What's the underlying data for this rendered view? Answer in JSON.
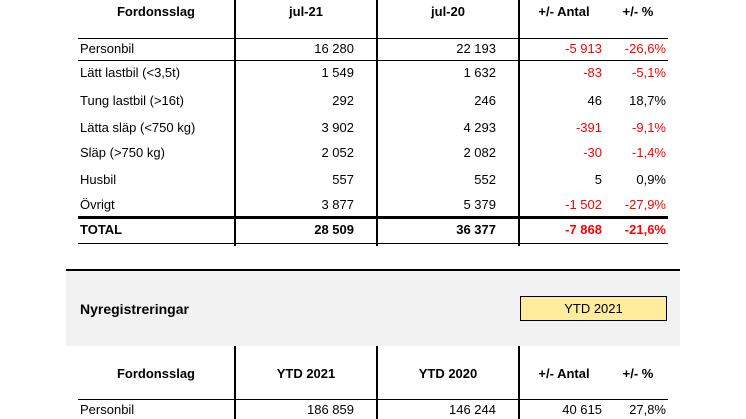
{
  "table1": {
    "headers": [
      "Fordonsslag",
      "jul-21",
      "jul-20",
      "+/- Antal",
      "+/- %"
    ],
    "rows": [
      {
        "label": "Personbil",
        "a": "16 280",
        "b": "22 193",
        "diff": "-5 913",
        "pct": "-26,6%",
        "neg_diff": true,
        "neg_pct": true
      },
      {
        "label": "Lätt lastbil (<3,5t)",
        "a": "1 549",
        "b": "1 632",
        "diff": "-83",
        "pct": "-5,1%",
        "neg_diff": true,
        "neg_pct": true
      },
      {
        "label": "Tung lastbil (>16t)",
        "a": "292",
        "b": "246",
        "diff": "46",
        "pct": "18,7%",
        "neg_diff": false,
        "neg_pct": false
      },
      {
        "label": "Lätta släp (<750 kg)",
        "a": "3 902",
        "b": "4 293",
        "diff": "-391",
        "pct": "-9,1%",
        "neg_diff": true,
        "neg_pct": true
      },
      {
        "label": "Släp (>750 kg)",
        "a": "2 052",
        "b": "2 082",
        "diff": "-30",
        "pct": "-1,4%",
        "neg_diff": true,
        "neg_pct": true
      },
      {
        "label": "Husbil",
        "a": "557",
        "b": "552",
        "diff": "5",
        "pct": "0,9%",
        "neg_diff": false,
        "neg_pct": false
      },
      {
        "label": "Övrigt",
        "a": "3 877",
        "b": "5 379",
        "diff": "-1 502",
        "pct": "-27,9%",
        "neg_diff": true,
        "neg_pct": true
      }
    ],
    "total": {
      "label": "TOTAL",
      "a": "28 509",
      "b": "36 377",
      "diff": "-7 868",
      "pct": "-21,6%"
    }
  },
  "section2": {
    "title": "Nyregistreringar",
    "badge": "YTD 2021"
  },
  "table2": {
    "headers": [
      "Fordonsslag",
      "YTD 2021",
      "YTD 2020",
      "+/- Antal",
      "+/- %"
    ],
    "rows": [
      {
        "label": "Personbil",
        "a": "186 859",
        "b": "146 244",
        "diff": "40 615",
        "pct": "27,8%"
      }
    ]
  },
  "colors": {
    "negative": "#ff0000",
    "badge_bg": "#ffeb9c",
    "band": "#f2f2f2"
  }
}
